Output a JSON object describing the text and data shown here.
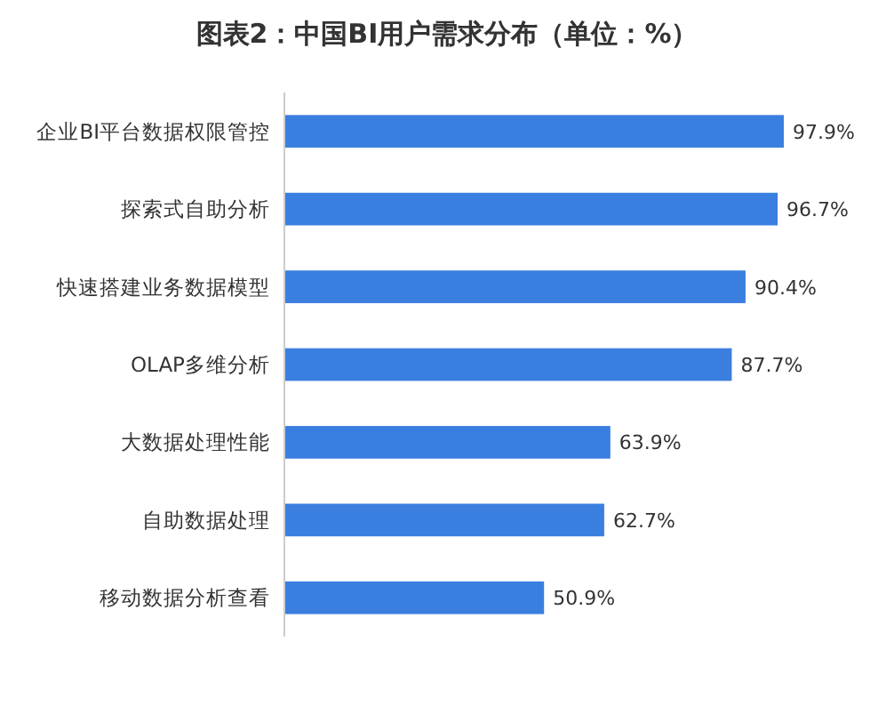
{
  "chart_data": {
    "type": "bar",
    "orientation": "horizontal",
    "title": "图表2：中国BI用户需求分布（单位：%）",
    "categories": [
      "企业BI平台数据权限管控",
      "探索式自助分析",
      "快速搭建业务数据模型",
      "OLAP多维分析",
      "大数据处理性能",
      "自助数据处理",
      "移动数据分析查看"
    ],
    "values": [
      97.9,
      96.7,
      90.4,
      87.7,
      63.9,
      62.7,
      50.9
    ],
    "value_labels": [
      "97.9%",
      "96.7%",
      "90.4%",
      "87.7%",
      "63.9%",
      "62.7%",
      "50.9%"
    ],
    "color": "#3a7fe0",
    "tick_labels": "y"
  }
}
